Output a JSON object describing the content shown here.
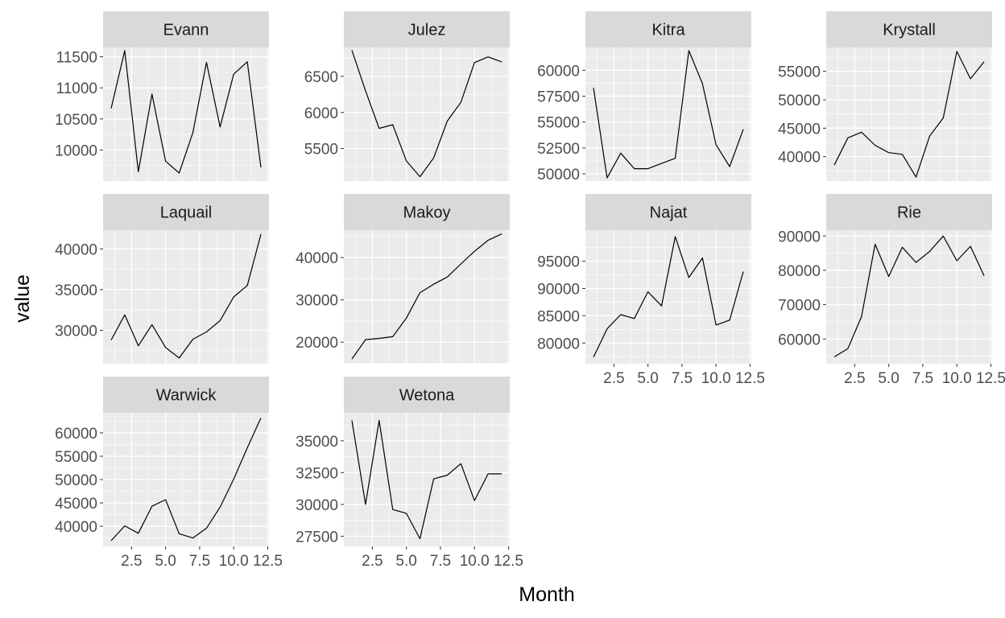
{
  "chart_data": {
    "type": "line",
    "layout": "facet_wrap, 4 columns, free y scales",
    "xlabel": "Month",
    "ylabel": "value",
    "x": [
      1,
      2,
      3,
      4,
      5,
      6,
      7,
      8,
      9,
      10,
      11,
      12
    ],
    "xlim": [
      1,
      12
    ],
    "x_ticks": [
      2.5,
      5.0,
      7.5,
      10.0,
      12.5
    ],
    "x_tick_labels": [
      "2.5",
      "5.0",
      "7.5",
      "10.0",
      "12.5"
    ],
    "grid": true,
    "panels": [
      {
        "name": "Evann",
        "ylim": [
          9500,
          11650
        ],
        "y_ticks": [
          10000,
          10500,
          11000,
          11500
        ],
        "values": [
          10670,
          11600,
          9650,
          10900,
          9820,
          9630,
          10280,
          11410,
          10370,
          11220,
          11420,
          9720
        ]
      },
      {
        "name": "Julez",
        "ylim": [
          5050,
          6900
        ],
        "y_ticks": [
          5500,
          6000,
          6500
        ],
        "values": [
          6860,
          6300,
          5780,
          5830,
          5330,
          5110,
          5370,
          5880,
          6140,
          6690,
          6770,
          6700
        ]
      },
      {
        "name": "Kitra",
        "ylim": [
          49300,
          62200
        ],
        "y_ticks": [
          50000,
          52500,
          55000,
          57500,
          60000
        ],
        "values": [
          58300,
          49600,
          52000,
          50500,
          50500,
          51000,
          51500,
          61900,
          58700,
          52800,
          50700,
          54300
        ]
      },
      {
        "name": "Krystall",
        "ylim": [
          35700,
          59200
        ],
        "y_ticks": [
          40000,
          45000,
          50000,
          55000
        ],
        "values": [
          38500,
          43300,
          44300,
          42000,
          40700,
          40400,
          36400,
          43600,
          46800,
          58500,
          53700,
          56700
        ]
      },
      {
        "name": "Laquail",
        "ylim": [
          25900,
          42300
        ],
        "y_ticks": [
          30000,
          35000,
          40000
        ],
        "values": [
          28800,
          31900,
          28100,
          30700,
          27900,
          26600,
          28900,
          29800,
          31200,
          34100,
          35500,
          41800
        ]
      },
      {
        "name": "Makoy",
        "ylim": [
          14900,
          46500
        ],
        "y_ticks": [
          20000,
          30000,
          40000
        ],
        "values": [
          16000,
          20600,
          20900,
          21300,
          25700,
          31700,
          33700,
          35400,
          38500,
          41500,
          44100,
          45600
        ]
      },
      {
        "name": "Najat",
        "ylim": [
          76200,
          100700
        ],
        "y_ticks": [
          80000,
          85000,
          90000,
          95000
        ],
        "values": [
          77400,
          82600,
          85200,
          84500,
          89400,
          86800,
          99500,
          92000,
          95600,
          83300,
          84200,
          93100
        ]
      },
      {
        "name": "Rie",
        "ylim": [
          52800,
          91700
        ],
        "y_ticks": [
          60000,
          70000,
          80000,
          90000
        ],
        "values": [
          54800,
          57200,
          66500,
          87600,
          78200,
          86700,
          82300,
          85500,
          90000,
          82800,
          87000,
          78400
        ]
      },
      {
        "name": "Warwick",
        "ylim": [
          35700,
          64300
        ],
        "y_ticks": [
          40000,
          45000,
          50000,
          55000,
          60000
        ],
        "values": [
          36900,
          40100,
          38500,
          44300,
          45700,
          38400,
          37500,
          39600,
          44100,
          50100,
          56800,
          63200
        ]
      },
      {
        "name": "Wetona",
        "ylim": [
          26700,
          37200
        ],
        "y_ticks": [
          27500,
          30000,
          32500,
          35000
        ],
        "values": [
          36600,
          30000,
          36600,
          29600,
          29300,
          27300,
          32000,
          32300,
          33200,
          30300,
          32400,
          32400
        ]
      }
    ]
  }
}
